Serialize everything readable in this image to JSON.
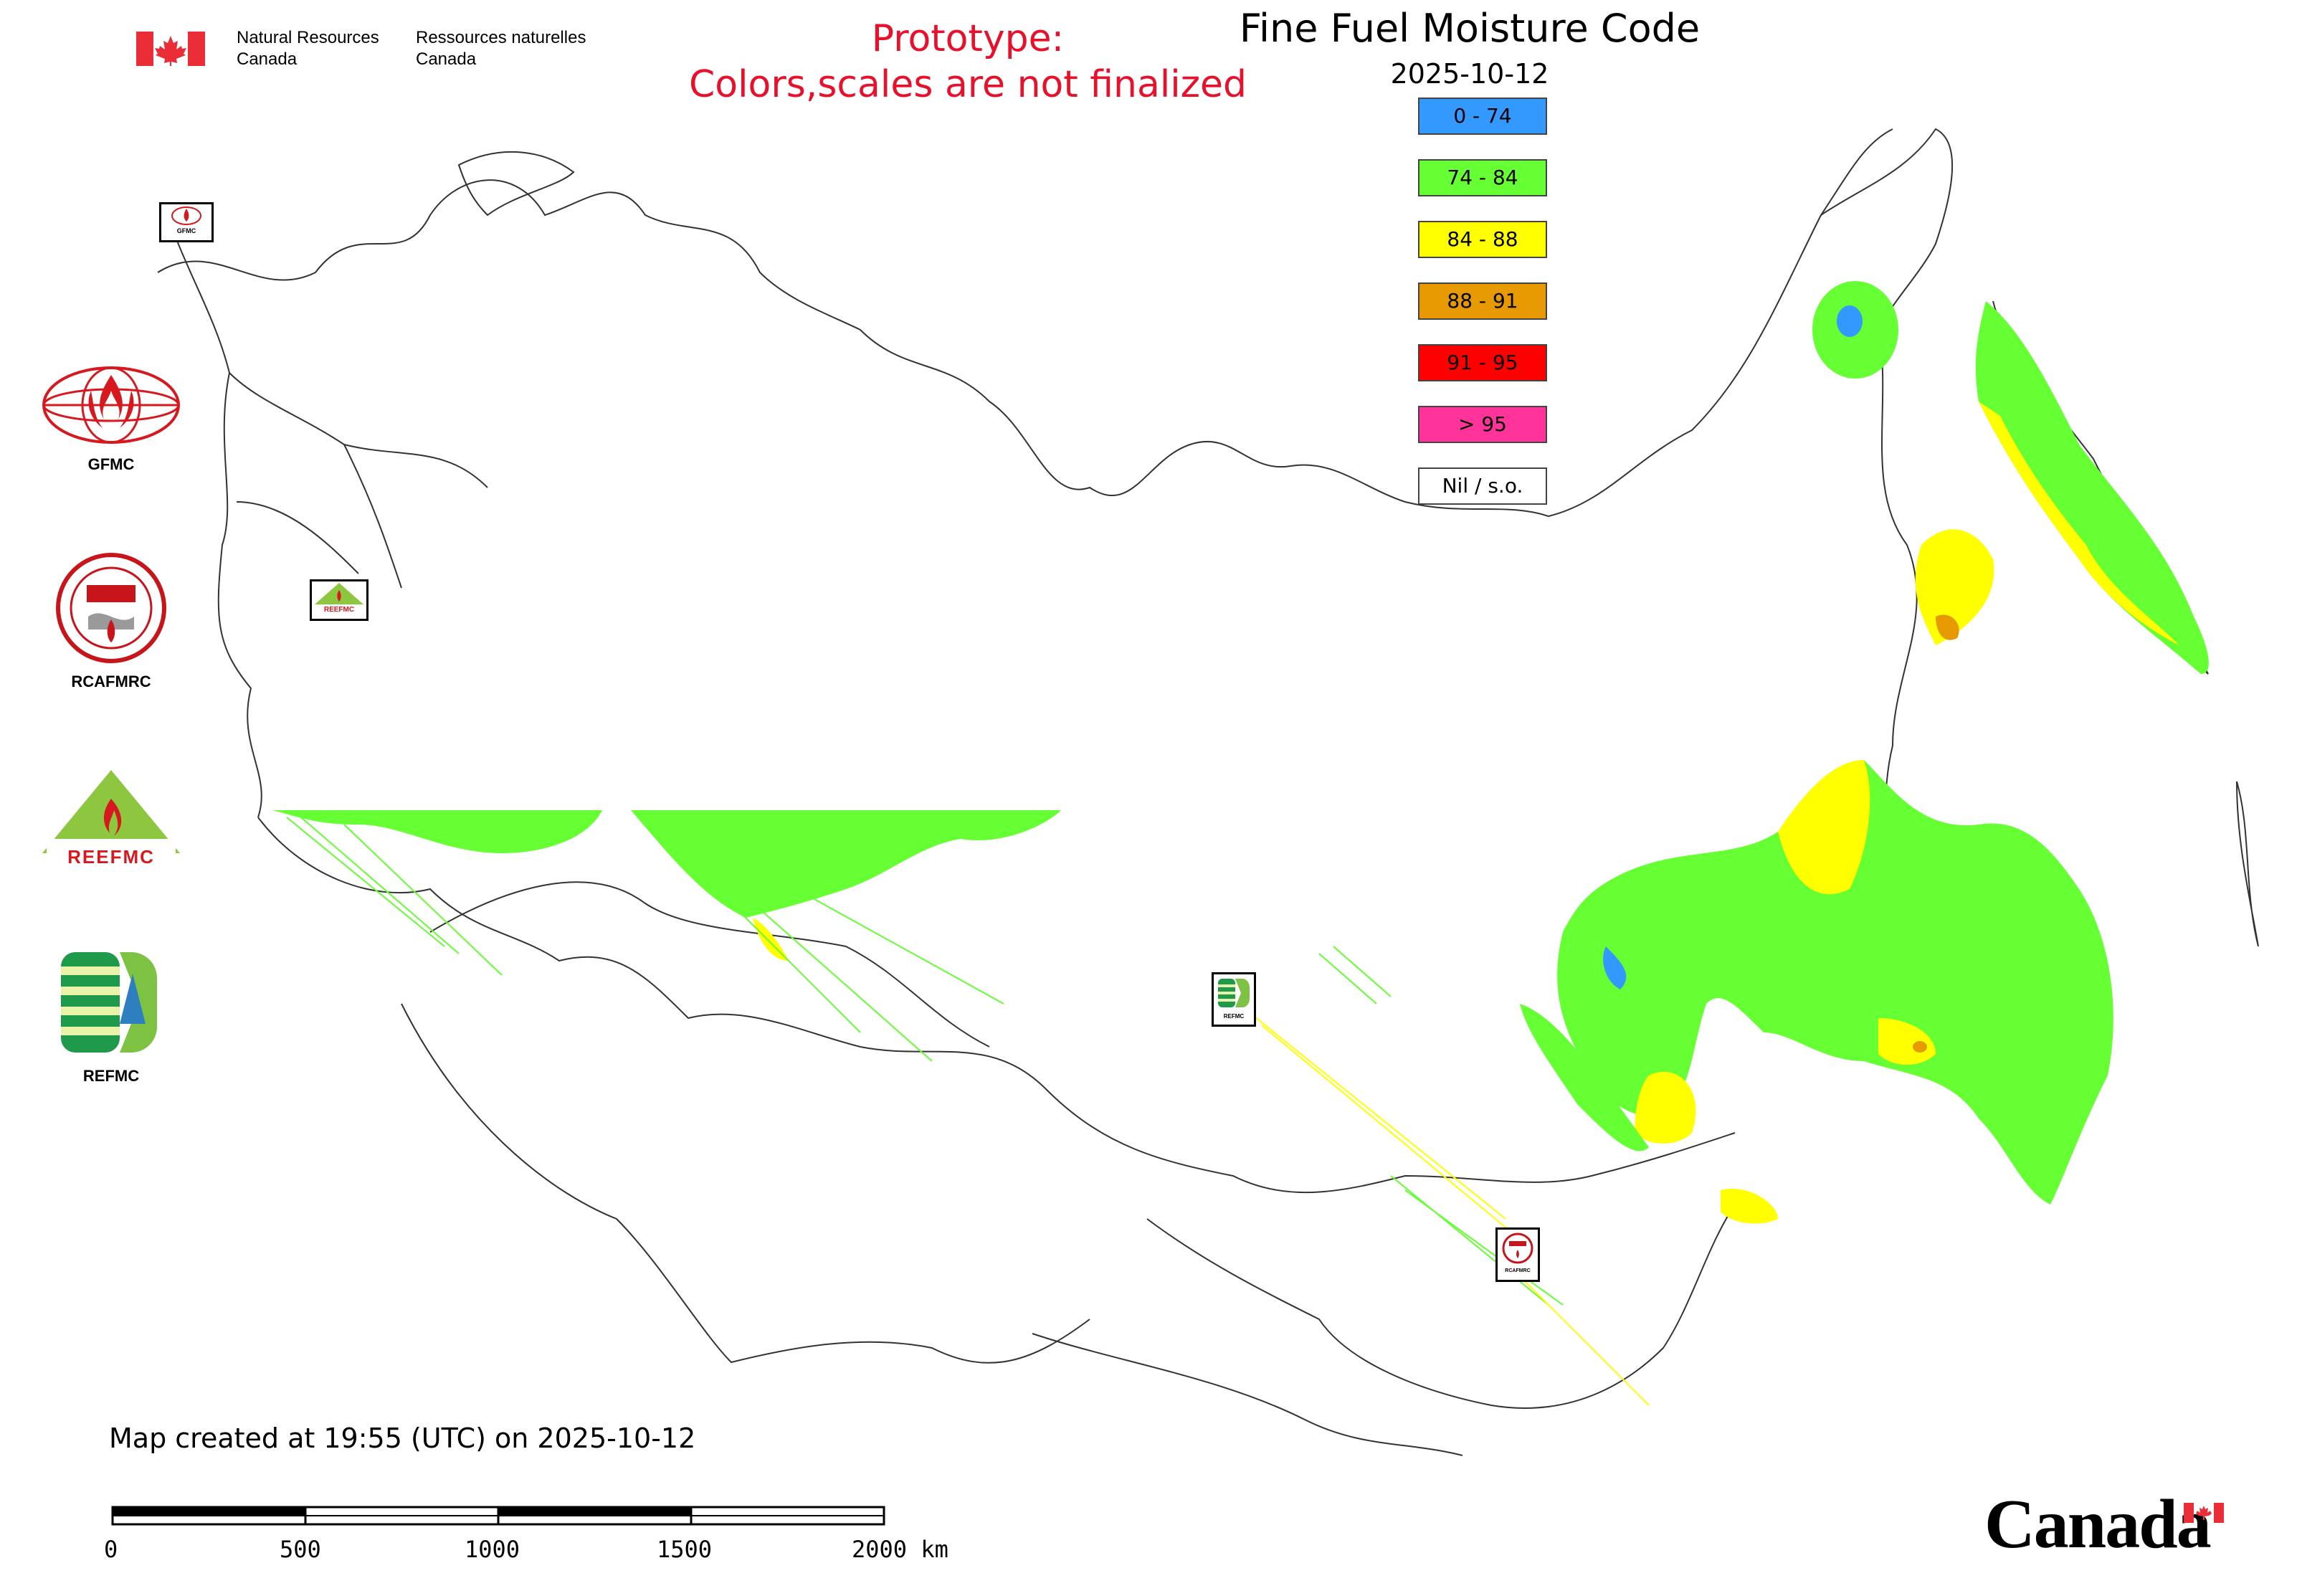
{
  "header": {
    "agency_en": "Natural Resources\nCanada",
    "agency_fr": "Ressources naturelles\nCanada",
    "prototype_line1": "Prototype:",
    "prototype_line2": "Colors,scales are not finalized",
    "title": "Fine Fuel Moisture Code",
    "date": "2025-10-12"
  },
  "legend": [
    {
      "label": "0 - 74",
      "color": "#3399ff"
    },
    {
      "label": "74 - 84",
      "color": "#66ff33"
    },
    {
      "label": "84 - 88",
      "color": "#ffff00"
    },
    {
      "label": "88 - 91",
      "color": "#e69900"
    },
    {
      "label": "91 - 95",
      "color": "#ff0000"
    },
    {
      "label": "> 95",
      "color": "#ff3399"
    },
    {
      "label": "Nil / s.o.",
      "color": "#ffffff"
    }
  ],
  "side_logos": [
    {
      "name": "GFMC"
    },
    {
      "name": "RCAFMRC"
    },
    {
      "name": "REEFMC"
    },
    {
      "name": "REFMC"
    }
  ],
  "map_markers": {
    "gfmc": "GFMC",
    "reefmc": "REEFMC",
    "refmc": "REFMC",
    "rcafmrc": "RCAFMRC"
  },
  "footer": {
    "created": "Map created at 19:55 (UTC) on 2025-10-12",
    "scale_labels": [
      "0",
      "500",
      "1000",
      "1500",
      "2000 km"
    ],
    "wordmark": "Canada"
  },
  "colors": {
    "accent_red": "#e8102b",
    "flag_red": "#eb2d37"
  }
}
